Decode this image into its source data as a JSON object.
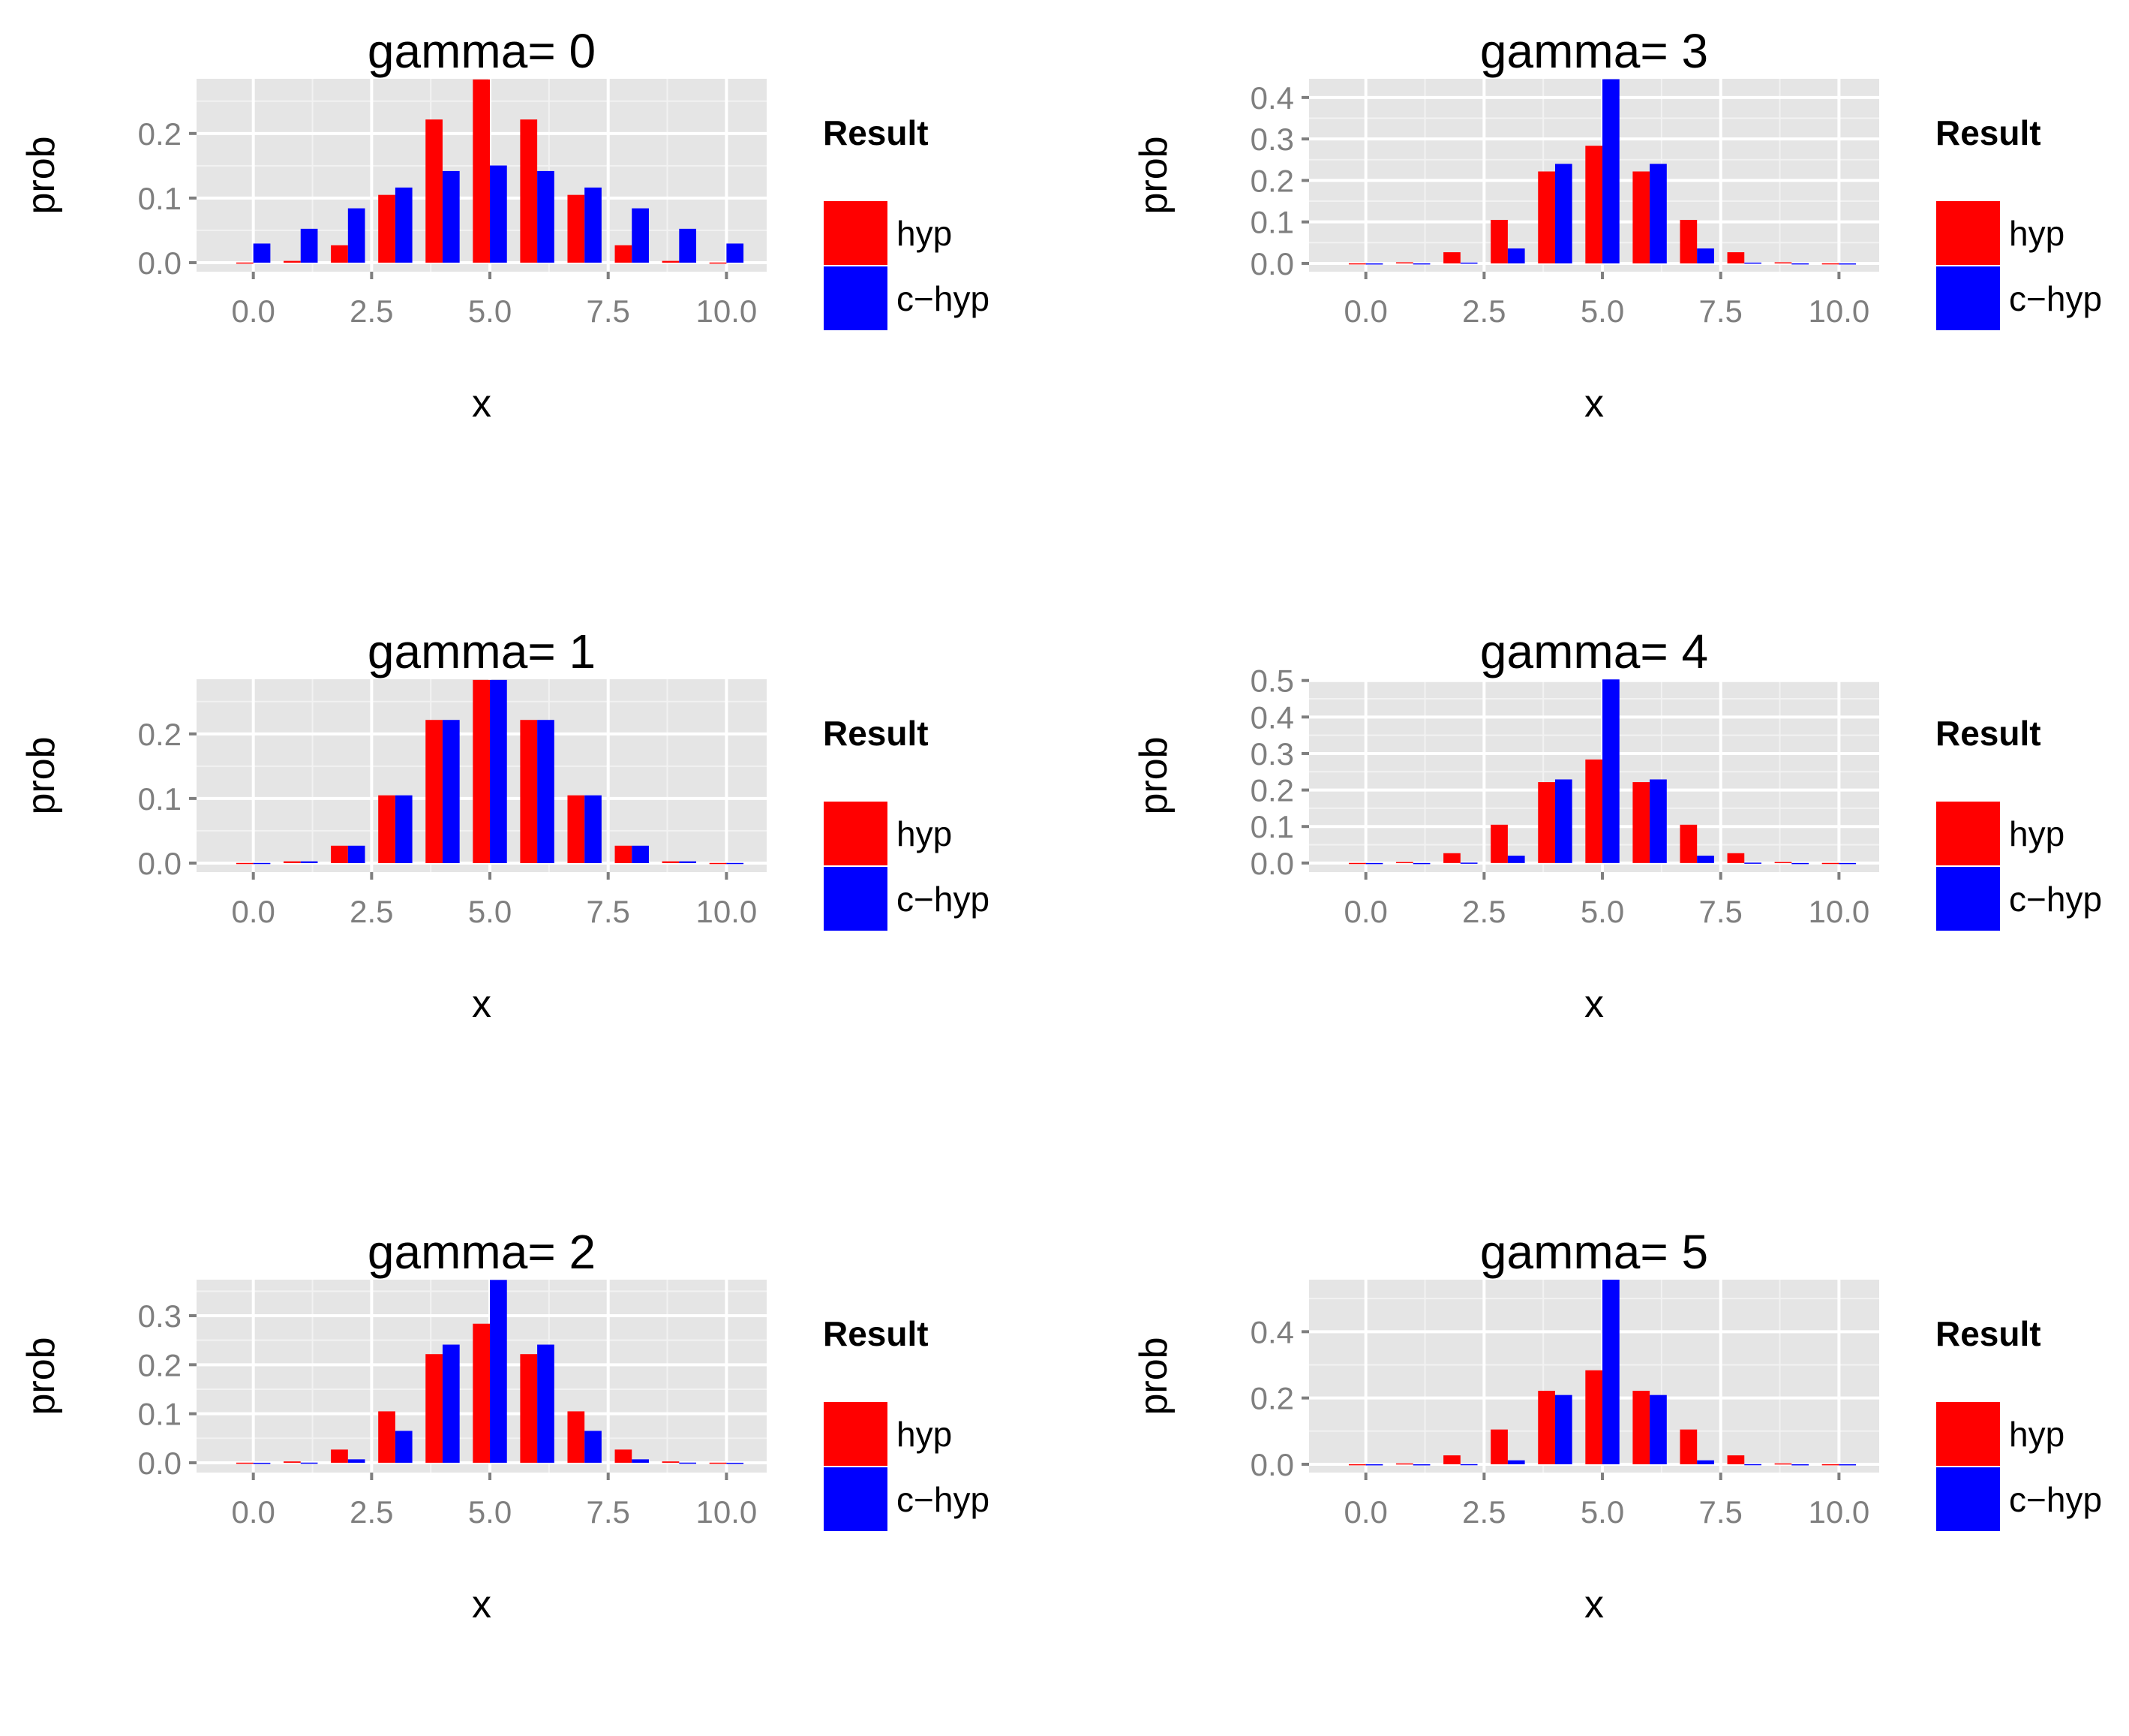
{
  "legend": {
    "title": "Result",
    "items": [
      {
        "label": "hyp",
        "color": "#ff0000"
      },
      {
        "label": "c−hyp",
        "color": "#0000ff"
      }
    ]
  },
  "chart_data": [
    {
      "type": "bar",
      "title": "gamma=  0",
      "xlabel": "x",
      "ylabel": "prob",
      "x": [
        0,
        1,
        2,
        3,
        4,
        5,
        6,
        7,
        8,
        9,
        10
      ],
      "xlim": [
        -1.2,
        10.85
      ],
      "ylim": [
        -0.014,
        0.2846
      ],
      "xticks": [
        0,
        2.5,
        5,
        7.5,
        10
      ],
      "xtick_labels": [
        "0.0",
        "2.5",
        "5.0",
        "7.5",
        "10.0"
      ],
      "yticks": [
        0,
        0.1,
        0.2
      ],
      "ytick_labels": [
        "0.0",
        "0.1",
        "0.2"
      ],
      "grid": true,
      "legend_position": "right",
      "series": [
        {
          "name": "hyp",
          "color": "#ff0000",
          "values": [
            0.0002,
            0.0027,
            0.0269,
            0.1049,
            0.2216,
            0.2836,
            0.2216,
            0.1049,
            0.0269,
            0.0027,
            0.0002
          ]
        },
        {
          "name": "c−hyp",
          "color": "#0000ff",
          "values": [
            0.0296,
            0.0524,
            0.0841,
            0.1163,
            0.1418,
            0.1504,
            0.1418,
            0.1163,
            0.0841,
            0.0524,
            0.0296
          ]
        }
      ]
    },
    {
      "type": "bar",
      "title": "gamma=  3",
      "xlabel": "x",
      "ylabel": "prob",
      "x": [
        0,
        1,
        2,
        3,
        4,
        5,
        6,
        7,
        8,
        9,
        10
      ],
      "xlim": [
        -1.2,
        10.85
      ],
      "ylim": [
        -0.02,
        0.445
      ],
      "xticks": [
        0,
        2.5,
        5,
        7.5,
        10
      ],
      "xtick_labels": [
        "0.0",
        "2.5",
        "5.0",
        "7.5",
        "10.0"
      ],
      "yticks": [
        0,
        0.1,
        0.2,
        0.3,
        0.4
      ],
      "ytick_labels": [
        "0.0",
        "0.1",
        "0.2",
        "0.3",
        "0.4"
      ],
      "grid": true,
      "legend_position": "right",
      "series": [
        {
          "name": "hyp",
          "color": "#ff0000",
          "values": [
            0.0002,
            0.0027,
            0.0269,
            0.1049,
            0.2216,
            0.2836,
            0.2216,
            0.1049,
            0.0269,
            0.0027,
            0.0002
          ]
        },
        {
          "name": "c−hyp",
          "color": "#0000ff",
          "values": [
            0.0,
            0.0001,
            0.002,
            0.036,
            0.24,
            0.444,
            0.24,
            0.036,
            0.002,
            0.0001,
            0.0
          ]
        }
      ]
    },
    {
      "type": "bar",
      "title": "gamma=  1",
      "xlabel": "x",
      "ylabel": "prob",
      "x": [
        0,
        1,
        2,
        3,
        4,
        5,
        6,
        7,
        8,
        9,
        10
      ],
      "xlim": [
        -1.2,
        10.85
      ],
      "ylim": [
        -0.014,
        0.2846
      ],
      "xticks": [
        0,
        2.5,
        5,
        7.5,
        10
      ],
      "xtick_labels": [
        "0.0",
        "2.5",
        "5.0",
        "7.5",
        "10.0"
      ],
      "yticks": [
        0,
        0.1,
        0.2
      ],
      "ytick_labels": [
        "0.0",
        "0.1",
        "0.2"
      ],
      "grid": true,
      "legend_position": "right",
      "series": [
        {
          "name": "hyp",
          "color": "#ff0000",
          "values": [
            0.0002,
            0.0027,
            0.0269,
            0.1049,
            0.2216,
            0.2836,
            0.2216,
            0.1049,
            0.0269,
            0.0027,
            0.0002
          ]
        },
        {
          "name": "c−hyp",
          "color": "#0000ff",
          "values": [
            0.0002,
            0.0027,
            0.0269,
            0.1049,
            0.2216,
            0.2836,
            0.2216,
            0.1049,
            0.0269,
            0.0027,
            0.0002
          ]
        }
      ]
    },
    {
      "type": "bar",
      "title": "gamma=  4",
      "xlabel": "x",
      "ylabel": "prob",
      "x": [
        0,
        1,
        2,
        3,
        4,
        5,
        6,
        7,
        8,
        9,
        10
      ],
      "xlim": [
        -1.2,
        10.85
      ],
      "ylim": [
        -0.025,
        0.5035
      ],
      "xticks": [
        0,
        2.5,
        5,
        7.5,
        10
      ],
      "xtick_labels": [
        "0.0",
        "2.5",
        "5.0",
        "7.5",
        "10.0"
      ],
      "yticks": [
        0,
        0.1,
        0.2,
        0.3,
        0.4,
        0.5
      ],
      "ytick_labels": [
        "0.0",
        "0.1",
        "0.2",
        "0.3",
        "0.4",
        "0.5"
      ],
      "grid": true,
      "legend_position": "right",
      "series": [
        {
          "name": "hyp",
          "color": "#ff0000",
          "values": [
            0.0002,
            0.0027,
            0.0269,
            0.1049,
            0.2216,
            0.2836,
            0.2216,
            0.1049,
            0.0269,
            0.0027,
            0.0002
          ]
        },
        {
          "name": "c−hyp",
          "color": "#0000ff",
          "values": [
            0.0,
            0.0,
            0.001,
            0.02,
            0.229,
            0.503,
            0.229,
            0.02,
            0.001,
            0.0,
            0.0
          ]
        }
      ]
    },
    {
      "type": "bar",
      "title": "gamma=  2",
      "xlabel": "x",
      "ylabel": "prob",
      "x": [
        0,
        1,
        2,
        3,
        4,
        5,
        6,
        7,
        8,
        9,
        10
      ],
      "xlim": [
        -1.2,
        10.85
      ],
      "ylim": [
        -0.02,
        0.3735
      ],
      "xticks": [
        0,
        2.5,
        5,
        7.5,
        10
      ],
      "xtick_labels": [
        "0.0",
        "2.5",
        "5.0",
        "7.5",
        "10.0"
      ],
      "yticks": [
        0,
        0.1,
        0.2,
        0.3
      ],
      "ytick_labels": [
        "0.0",
        "0.1",
        "0.2",
        "0.3"
      ],
      "grid": true,
      "legend_position": "right",
      "series": [
        {
          "name": "hyp",
          "color": "#ff0000",
          "values": [
            0.0002,
            0.0027,
            0.0269,
            0.1049,
            0.2216,
            0.2836,
            0.2216,
            0.1049,
            0.0269,
            0.0027,
            0.0002
          ]
        },
        {
          "name": "c−hyp",
          "color": "#0000ff",
          "values": [
            0.0,
            0.0003,
            0.007,
            0.065,
            0.241,
            0.373,
            0.241,
            0.065,
            0.007,
            0.0003,
            0.0
          ]
        }
      ]
    },
    {
      "type": "bar",
      "title": "gamma=  5",
      "xlabel": "x",
      "ylabel": "prob",
      "x": [
        0,
        1,
        2,
        3,
        4,
        5,
        6,
        7,
        8,
        9,
        10
      ],
      "xlim": [
        -1.2,
        10.85
      ],
      "ylim": [
        -0.025,
        0.557
      ],
      "xticks": [
        0,
        2.5,
        5,
        7.5,
        10
      ],
      "xtick_labels": [
        "0.0",
        "2.5",
        "5.0",
        "7.5",
        "10.0"
      ],
      "yticks": [
        0,
        0.2,
        0.4
      ],
      "ytick_labels": [
        "0.0",
        "0.2",
        "0.4"
      ],
      "grid": true,
      "legend_position": "right",
      "series": [
        {
          "name": "hyp",
          "color": "#ff0000",
          "values": [
            0.0002,
            0.0027,
            0.0269,
            0.1049,
            0.2216,
            0.2836,
            0.2216,
            0.1049,
            0.0269,
            0.0027,
            0.0002
          ]
        },
        {
          "name": "c−hyp",
          "color": "#0000ff",
          "values": [
            0.0,
            0.0,
            0.0004,
            0.012,
            0.209,
            0.557,
            0.209,
            0.012,
            0.0004,
            0.0,
            0.0
          ]
        }
      ]
    }
  ]
}
